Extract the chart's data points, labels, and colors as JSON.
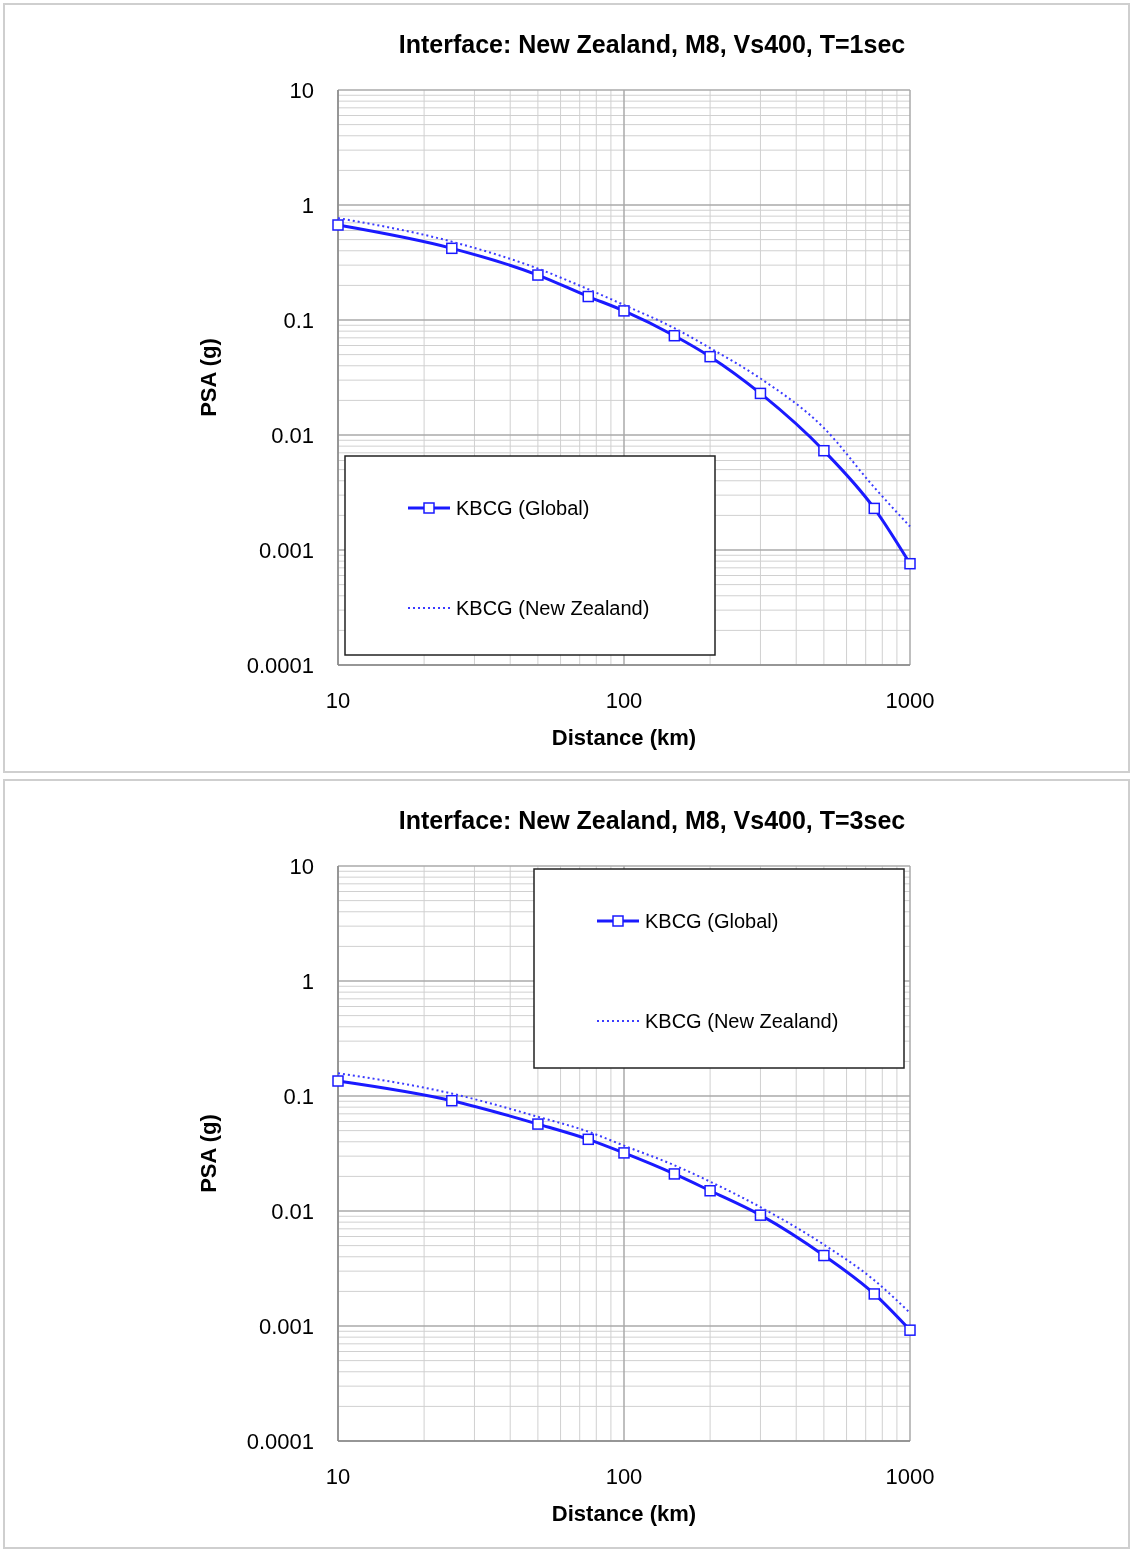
{
  "chart_data": [
    {
      "type": "line",
      "title": "Interface: New Zealand, M8, Vs400, T=1sec",
      "xlabel": "Distance (km)",
      "ylabel": "PSA (g)",
      "log": "xy",
      "grid": true,
      "legend": "bottom left",
      "xlim": [
        10,
        1000
      ],
      "xticks": [
        10,
        100,
        1000
      ],
      "ylim": [
        0.0001,
        10
      ],
      "yticks": [
        0.0001,
        0.001,
        0.01,
        0.1,
        1,
        10
      ],
      "x": [
        10,
        25,
        50,
        75,
        100,
        150,
        200,
        300,
        500,
        750,
        1000
      ],
      "series": [
        {
          "name": "KBCG (Global)",
          "color": "#1a1aff",
          "marker": "square",
          "line_style": "solid",
          "values": [
            0.67,
            0.42,
            0.246,
            0.16,
            0.12,
            0.073,
            0.048,
            0.023,
            0.0073,
            0.0023,
            0.00076
          ]
        },
        {
          "name": "KBCG (New Zealand)",
          "color": "#3b3bff",
          "marker": "none",
          "line_style": "dotted",
          "values": [
            0.77,
            0.48,
            0.28,
            0.185,
            0.135,
            0.085,
            0.057,
            0.031,
            0.0115,
            0.0035,
            0.0016
          ]
        }
      ]
    },
    {
      "type": "line",
      "title": "Interface: New Zealand, M8, Vs400, T=3sec",
      "xlabel": "Distance (km)",
      "ylabel": "PSA (g)",
      "log": "xy",
      "grid": true,
      "legend": "top right",
      "xlim": [
        10,
        1000
      ],
      "xticks": [
        10,
        100,
        1000
      ],
      "ylim": [
        0.0001,
        10
      ],
      "yticks": [
        0.0001,
        0.001,
        0.01,
        0.1,
        1,
        10
      ],
      "x": [
        10,
        25,
        50,
        75,
        100,
        150,
        200,
        300,
        500,
        750,
        1000
      ],
      "series": [
        {
          "name": "KBCG (Global)",
          "color": "#1a1aff",
          "marker": "square",
          "line_style": "solid",
          "values": [
            0.135,
            0.091,
            0.057,
            0.042,
            0.032,
            0.021,
            0.015,
            0.0092,
            0.0041,
            0.0019,
            0.00092
          ]
        },
        {
          "name": "KBCG (New Zealand)",
          "color": "#3b3bff",
          "marker": "none",
          "line_style": "dotted",
          "values": [
            0.158,
            0.105,
            0.066,
            0.049,
            0.037,
            0.025,
            0.018,
            0.0108,
            0.0051,
            0.0025,
            0.0013
          ]
        }
      ]
    }
  ]
}
